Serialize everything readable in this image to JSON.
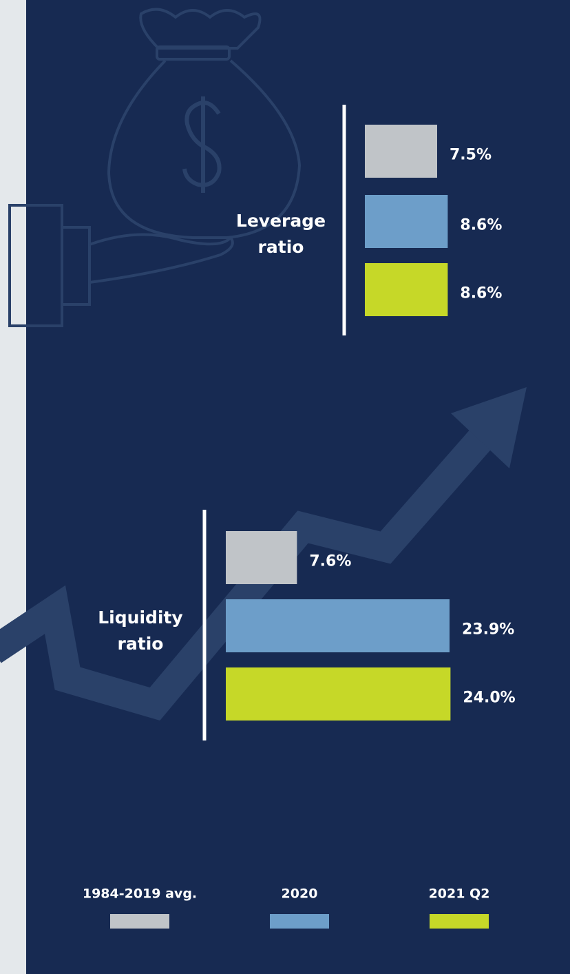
{
  "chart_data": [
    {
      "type": "bar",
      "orientation": "horizontal",
      "title": "Leverage ratio",
      "series": [
        {
          "name": "1984-2019 avg.",
          "color": "#c0c4c8",
          "values": [
            7.5
          ],
          "value_labels": [
            "7.5%"
          ]
        },
        {
          "name": "2020",
          "color": "#6d9ec9",
          "values": [
            8.6
          ],
          "value_labels": [
            "8.6%"
          ]
        },
        {
          "name": "2021 Q2",
          "color": "#c6d828",
          "values": [
            8.6
          ],
          "value_labels": [
            "8.6%"
          ]
        }
      ]
    },
    {
      "type": "bar",
      "orientation": "horizontal",
      "title": "Liquidity ratio",
      "series": [
        {
          "name": "1984-2019 avg.",
          "color": "#c0c4c8",
          "values": [
            7.6
          ],
          "value_labels": [
            "7.6%"
          ]
        },
        {
          "name": "2020",
          "color": "#6d9ec9",
          "values": [
            23.9
          ],
          "value_labels": [
            "23.9%"
          ]
        },
        {
          "name": "2021 Q2",
          "color": "#c6d828",
          "values": [
            24.0
          ],
          "value_labels": [
            "24.0%"
          ]
        }
      ]
    }
  ]
}
